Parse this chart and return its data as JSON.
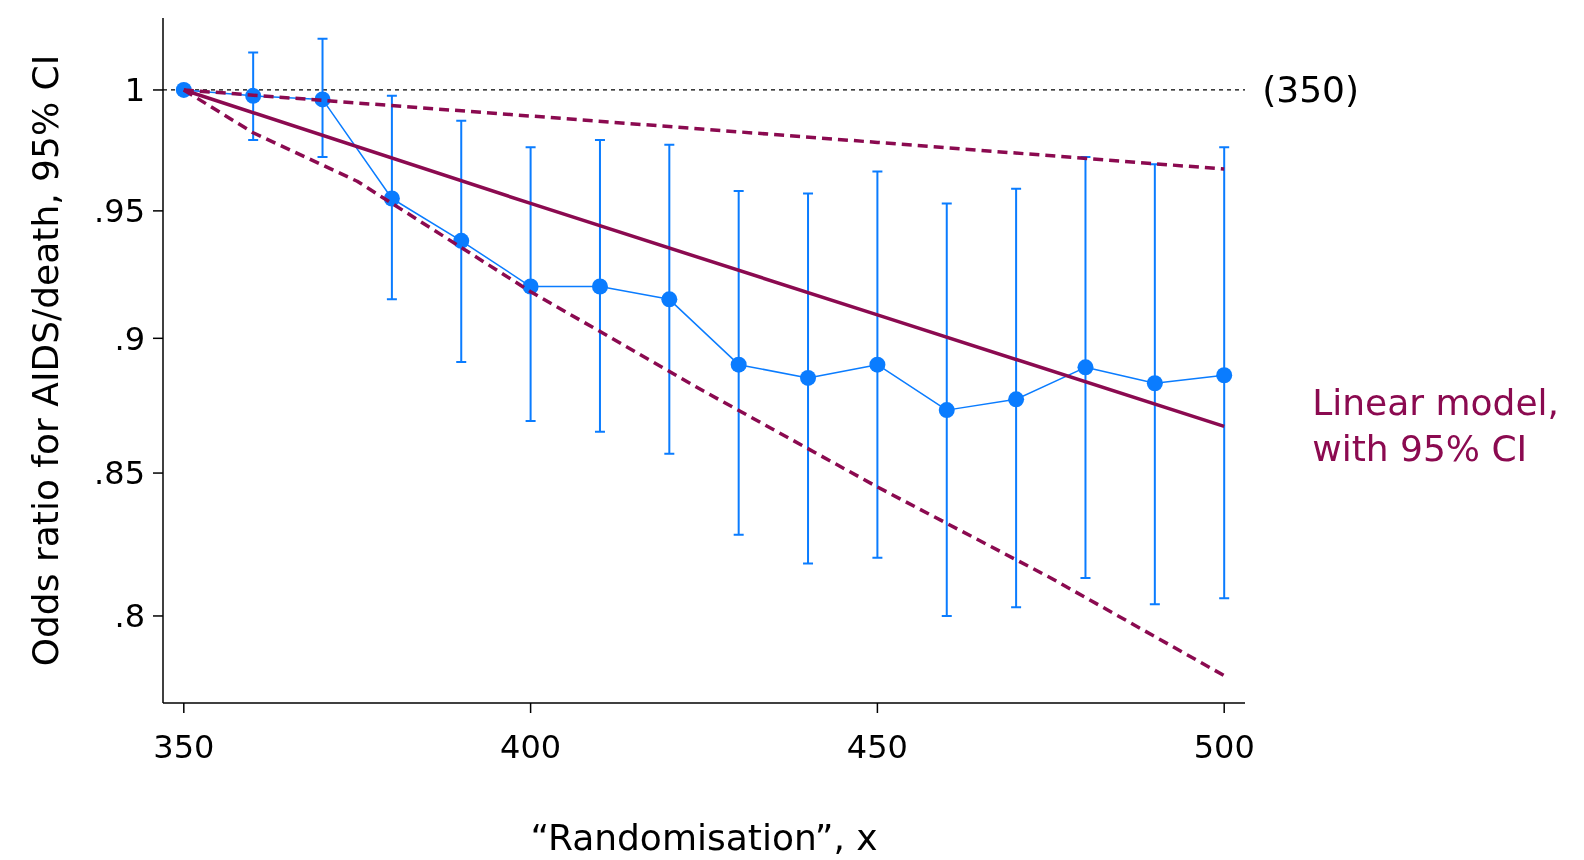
{
  "chart_data": {
    "type": "line",
    "xlabel": "“Randomisation”, x",
    "ylabel": "Odds ratio for AIDS/death, 95% CI",
    "log": "y",
    "xlim": [
      347,
      503
    ],
    "xticks": [
      350,
      400,
      450,
      500
    ],
    "ylim": [
      0.771,
      1.031
    ],
    "yticks": [
      {
        "value": 0.8,
        "label": ".8"
      },
      {
        "value": 0.85,
        "label": ".85"
      },
      {
        "value": 0.9,
        "label": ".9"
      },
      {
        "value": 0.95,
        "label": ".95"
      },
      {
        "value": 1,
        "label": "1"
      }
    ],
    "grid": false,
    "x": [
      350,
      360,
      370,
      380,
      390,
      400,
      410,
      420,
      430,
      440,
      450,
      460,
      470,
      480,
      490,
      500
    ],
    "series": [
      {
        "color": "#0a7cff",
        "marker": "circle",
        "line_style": "solid",
        "values": [
          1,
          0.9975,
          0.996,
          0.955,
          0.938,
          0.92,
          0.92,
          0.915,
          0.89,
          0.885,
          0.89,
          0.873,
          0.877,
          0.889,
          0.883,
          0.886
        ],
        "errors": [
          null,
          [
            0.979,
            1.016
          ],
          [
            0.972,
            1.022
          ],
          [
            0.915,
            0.9975
          ],
          [
            0.891,
            0.987
          ],
          [
            0.869,
            0.976
          ],
          [
            0.865,
            0.979
          ],
          [
            0.857,
            0.977
          ],
          [
            0.828,
            0.958
          ],
          [
            0.818,
            0.957
          ],
          [
            0.82,
            0.966
          ],
          [
            0.8,
            0.953
          ],
          [
            0.803,
            0.959
          ],
          [
            0.813,
            0.972
          ],
          [
            0.804,
            0.969
          ],
          [
            0.806,
            0.976
          ]
        ]
      },
      {
        "color": "#8b0a50",
        "marker": "none",
        "line_style": "solid",
        "x": [
          350,
          400,
          450,
          500
        ],
        "values": [
          1,
          0.953,
          0.909,
          0.867
        ]
      },
      {
        "color": "#8b0a50",
        "marker": "none",
        "line_style": "dashed",
        "x": [
          350,
          400,
          450,
          500
        ],
        "values": [
          1,
          0.989,
          0.978,
          0.967
        ]
      },
      {
        "color": "#8b0a50",
        "marker": "none",
        "line_style": "dashed",
        "x": [
          350,
          360,
          375,
          400,
          425,
          450,
          475,
          500
        ],
        "values": [
          1,
          0.982,
          0.962,
          0.918,
          0.88,
          0.845,
          0.813,
          0.78
        ]
      }
    ],
    "ref_lines": [
      {
        "axis": "y",
        "value": 1,
        "color": "#000000",
        "line_style": "dashed"
      }
    ],
    "annotations": [
      {
        "text": "(350)",
        "x": 500,
        "y": 1
      },
      {
        "text": "Linear model, with 95% CI",
        "x": 500,
        "y": 0.867
      }
    ]
  }
}
